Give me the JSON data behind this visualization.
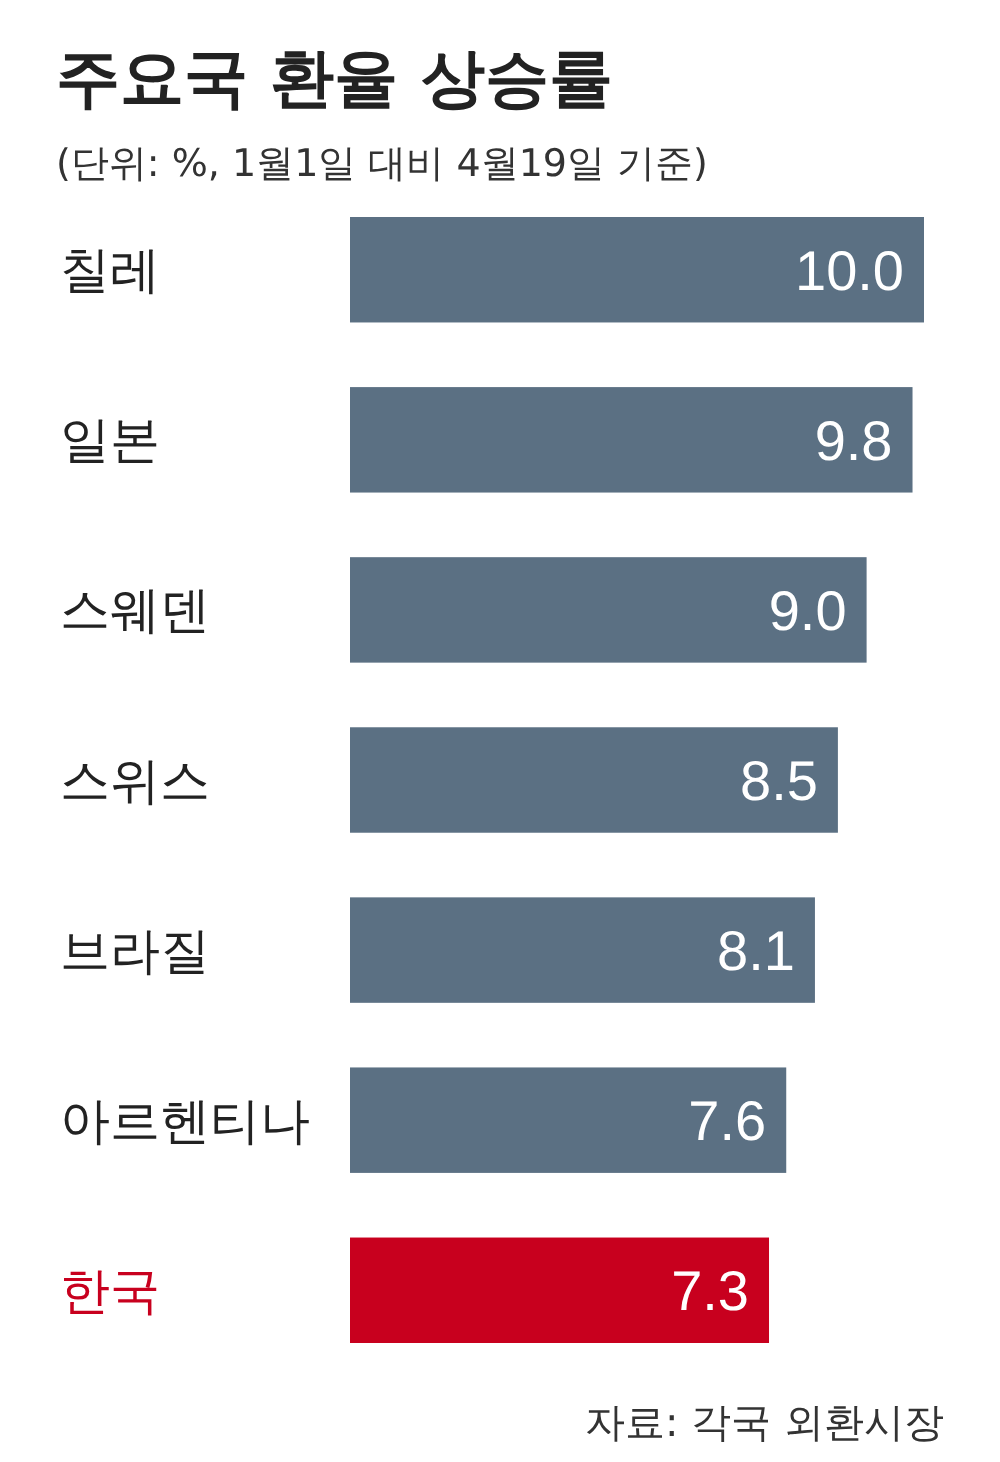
{
  "chart_data": {
    "type": "bar",
    "orientation": "horizontal",
    "title": "주요국 환율 상승률",
    "subtitle": "(단위: %, 1월1일 대비 4월19일 기준)",
    "categories": [
      "칠레",
      "일본",
      "스웨덴",
      "스위스",
      "브라질",
      "아르헨티나",
      "한국"
    ],
    "values": [
      10.0,
      9.8,
      9.0,
      8.5,
      8.1,
      7.6,
      7.3
    ],
    "colors": [
      "#5b7083",
      "#5b7083",
      "#5b7083",
      "#5b7083",
      "#5b7083",
      "#5b7083",
      "#c8001e"
    ],
    "value_labels": [
      "10.0",
      "9.8",
      "9.0",
      "8.5",
      "8.1",
      "7.6",
      "7.3"
    ],
    "annotations": [
      "자료: 각국 외환시장"
    ]
  }
}
